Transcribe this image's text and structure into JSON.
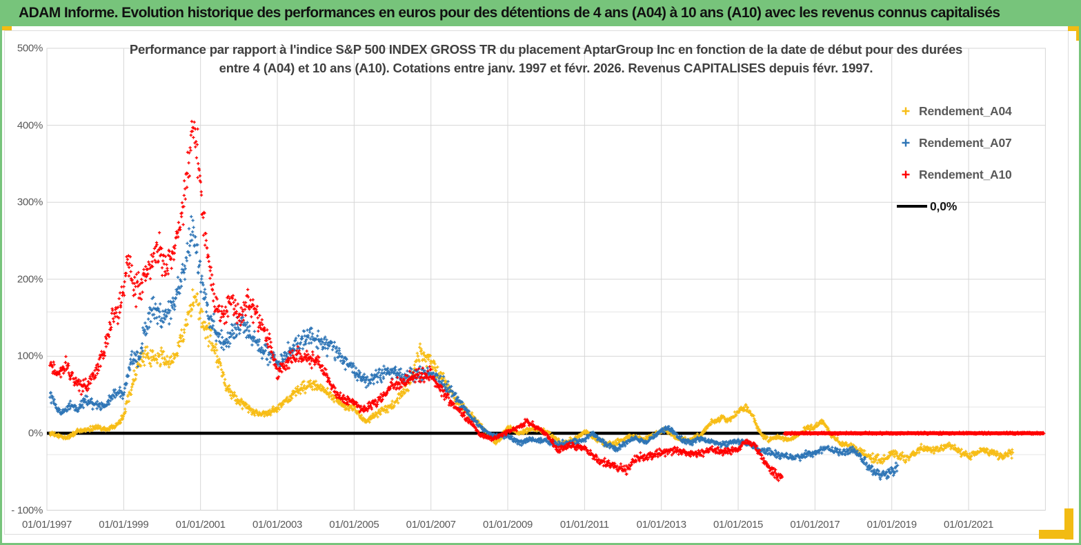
{
  "header": {
    "title": "ADAM Informe. Evolution historique des performances en euros pour des détentions de 4 ans (A04) à 10 ans (A10) avec les revenus connus capitalisés"
  },
  "chart_data": {
    "type": "scatter",
    "title_line1": "Performance par rapport à l'indice S&P 500 INDEX GROSS TR  du placement AptarGroup Inc en fonction de la date de début pour des durées",
    "title_line2": "entre 4 (A04) et 10 ans (A10). Cotations entre janv. 1997 et févr. 2026. Revenus CAPITALISES depuis févr. 1997.",
    "ylabel": "",
    "xlabel": "",
    "y_tick_labels": [
      "500%",
      "400%",
      "300%",
      "200%",
      "100%",
      "0%",
      "- 100%"
    ],
    "y_tick_values": [
      500,
      400,
      300,
      200,
      100,
      0,
      -100
    ],
    "x_tick_labels": [
      "01/01/1997",
      "01/01/1999",
      "01/01/2001",
      "01/01/2003",
      "01/01/2005",
      "01/01/2007",
      "01/01/2009",
      "01/01/2011",
      "01/01/2013",
      "01/01/2015",
      "01/01/2017",
      "01/01/2019",
      "01/01/2021"
    ],
    "x_tick_years": [
      1997,
      1999,
      2001,
      2003,
      2005,
      2007,
      2009,
      2011,
      2013,
      2015,
      2017,
      2019,
      2021
    ],
    "x_range": [
      1997.0,
      2023.0
    ],
    "y_range": [
      -100,
      500
    ],
    "grid": true,
    "extra_gridlines_pct": [
      157.6,
      34.0,
      -27.8
    ],
    "gridline_color": "#d6d6d6",
    "extra_gridline_color": "#e4e4e4",
    "axis_text_color": "#595959",
    "legend_position": "top-right",
    "legend": [
      {
        "label": "Rendement_A04",
        "color": "#f7bd16",
        "marker": "plus"
      },
      {
        "label": "Rendement_A07",
        "color": "#2e75b6",
        "marker": "plus"
      },
      {
        "label": "Rendement_A10",
        "color": "#ff0000",
        "marker": "plus"
      },
      {
        "label": "0,0%",
        "color": "#000000",
        "marker": "line"
      }
    ],
    "zero_line": {
      "value": 0.0,
      "color": "#000000",
      "label": "0,0%",
      "from": 1997.0,
      "to": 2022.96
    },
    "series": [
      {
        "name": "Rendement_A04",
        "color": "#f7bd16",
        "start": 1997.08,
        "end": 2022.15,
        "keypoints": [
          [
            1997.1,
            0
          ],
          [
            1997.3,
            -4
          ],
          [
            1997.5,
            -6
          ],
          [
            1997.8,
            2
          ],
          [
            1998.0,
            4
          ],
          [
            1998.3,
            8
          ],
          [
            1998.6,
            5
          ],
          [
            1998.9,
            15
          ],
          [
            1999.0,
            25
          ],
          [
            1999.2,
            60
          ],
          [
            1999.4,
            95
          ],
          [
            1999.6,
            100
          ],
          [
            1999.8,
            95
          ],
          [
            2000.0,
            100
          ],
          [
            2000.2,
            90
          ],
          [
            2000.4,
            110
          ],
          [
            2000.6,
            135
          ],
          [
            2000.8,
            172
          ],
          [
            2000.95,
            160
          ],
          [
            2001.1,
            140
          ],
          [
            2001.3,
            120
          ],
          [
            2001.5,
            90
          ],
          [
            2001.7,
            55
          ],
          [
            2002.0,
            42
          ],
          [
            2002.3,
            30
          ],
          [
            2002.6,
            24
          ],
          [
            2003.0,
            32
          ],
          [
            2003.3,
            45
          ],
          [
            2003.6,
            58
          ],
          [
            2003.9,
            64
          ],
          [
            2004.1,
            60
          ],
          [
            2004.4,
            48
          ],
          [
            2004.7,
            36
          ],
          [
            2005.0,
            33
          ],
          [
            2005.3,
            15
          ],
          [
            2005.6,
            25
          ],
          [
            2006.0,
            36
          ],
          [
            2006.4,
            60
          ],
          [
            2006.7,
            105
          ],
          [
            2006.9,
            98
          ],
          [
            2007.1,
            88
          ],
          [
            2007.3,
            70
          ],
          [
            2007.5,
            55
          ],
          [
            2007.8,
            35
          ],
          [
            2008.0,
            25
          ],
          [
            2008.4,
            5
          ],
          [
            2008.7,
            -14
          ],
          [
            2009.0,
            8
          ],
          [
            2009.3,
            0
          ],
          [
            2009.6,
            5
          ],
          [
            2010.0,
            3
          ],
          [
            2010.4,
            -14
          ],
          [
            2010.7,
            -9
          ],
          [
            2011.0,
            2
          ],
          [
            2011.3,
            -7
          ],
          [
            2011.6,
            -16
          ],
          [
            2011.9,
            -11
          ],
          [
            2012.2,
            -3
          ],
          [
            2012.5,
            -8
          ],
          [
            2012.8,
            -2
          ],
          [
            2013.1,
            5
          ],
          [
            2013.4,
            -6
          ],
          [
            2013.7,
            -10
          ],
          [
            2014.0,
            -3
          ],
          [
            2014.3,
            14
          ],
          [
            2014.6,
            20
          ],
          [
            2014.8,
            17
          ],
          [
            2015.0,
            27
          ],
          [
            2015.2,
            34
          ],
          [
            2015.4,
            20
          ],
          [
            2015.6,
            -2
          ],
          [
            2015.8,
            -8
          ],
          [
            2016.0,
            -5
          ],
          [
            2016.3,
            -8
          ],
          [
            2016.5,
            -5
          ],
          [
            2016.8,
            8
          ],
          [
            2017.0,
            8
          ],
          [
            2017.2,
            16
          ],
          [
            2017.4,
            -2
          ],
          [
            2017.7,
            -14
          ],
          [
            2018.0,
            -18
          ],
          [
            2018.3,
            -28
          ],
          [
            2018.7,
            -36
          ],
          [
            2019.0,
            -25
          ],
          [
            2019.4,
            -32
          ],
          [
            2019.8,
            -18
          ],
          [
            2020.1,
            -23
          ],
          [
            2020.5,
            -16
          ],
          [
            2020.8,
            -25
          ],
          [
            2021.0,
            -30
          ],
          [
            2021.3,
            -22
          ],
          [
            2021.6,
            -25
          ],
          [
            2021.9,
            -30
          ],
          [
            2022.15,
            -26
          ]
        ]
      },
      {
        "name": "Rendement_A07",
        "color": "#2e75b6",
        "start": 1997.08,
        "end": 2019.15,
        "keypoints": [
          [
            1997.1,
            50
          ],
          [
            1997.25,
            32
          ],
          [
            1997.4,
            25
          ],
          [
            1997.6,
            35
          ],
          [
            1997.8,
            30
          ],
          [
            1998.0,
            44
          ],
          [
            1998.2,
            38
          ],
          [
            1998.5,
            34
          ],
          [
            1998.8,
            55
          ],
          [
            1999.0,
            50
          ],
          [
            1999.2,
            95
          ],
          [
            1999.4,
            100
          ],
          [
            1999.6,
            140
          ],
          [
            1999.8,
            162
          ],
          [
            2000.0,
            150
          ],
          [
            2000.2,
            158
          ],
          [
            2000.4,
            185
          ],
          [
            2000.6,
            215
          ],
          [
            2000.78,
            270
          ],
          [
            2000.9,
            235
          ],
          [
            2001.05,
            195
          ],
          [
            2001.2,
            155
          ],
          [
            2001.4,
            135
          ],
          [
            2001.6,
            112
          ],
          [
            2001.8,
            130
          ],
          [
            2002.0,
            145
          ],
          [
            2002.3,
            128
          ],
          [
            2002.6,
            108
          ],
          [
            2003.0,
            90
          ],
          [
            2003.3,
            105
          ],
          [
            2003.6,
            120
          ],
          [
            2003.9,
            128
          ],
          [
            2004.2,
            115
          ],
          [
            2004.5,
            107
          ],
          [
            2004.8,
            92
          ],
          [
            2005.0,
            82
          ],
          [
            2005.3,
            68
          ],
          [
            2005.6,
            76
          ],
          [
            2006.0,
            80
          ],
          [
            2006.3,
            72
          ],
          [
            2006.6,
            78
          ],
          [
            2007.0,
            77
          ],
          [
            2007.3,
            65
          ],
          [
            2007.6,
            50
          ],
          [
            2008.0,
            24
          ],
          [
            2008.3,
            8
          ],
          [
            2008.6,
            -4
          ],
          [
            2009.0,
            -3
          ],
          [
            2009.3,
            -12
          ],
          [
            2009.6,
            -8
          ],
          [
            2010.0,
            -10
          ],
          [
            2010.3,
            -15
          ],
          [
            2010.6,
            -12
          ],
          [
            2011.0,
            -9
          ],
          [
            2011.2,
            0
          ],
          [
            2011.5,
            -12
          ],
          [
            2011.8,
            -22
          ],
          [
            2012.0,
            -15
          ],
          [
            2012.3,
            -6
          ],
          [
            2012.6,
            -12
          ],
          [
            2013.0,
            4
          ],
          [
            2013.2,
            6
          ],
          [
            2013.5,
            -7
          ],
          [
            2013.8,
            -13
          ],
          [
            2014.0,
            -7
          ],
          [
            2014.3,
            -11
          ],
          [
            2014.6,
            -15
          ],
          [
            2015.0,
            -10
          ],
          [
            2015.3,
            -14
          ],
          [
            2015.6,
            -22
          ],
          [
            2016.0,
            -28
          ],
          [
            2016.3,
            -30
          ],
          [
            2016.6,
            -30
          ],
          [
            2017.0,
            -25
          ],
          [
            2017.3,
            -20
          ],
          [
            2017.6,
            -25
          ],
          [
            2018.0,
            -22
          ],
          [
            2018.2,
            -32
          ],
          [
            2018.5,
            -48
          ],
          [
            2018.7,
            -55
          ],
          [
            2018.9,
            -52
          ],
          [
            2019.15,
            -45
          ]
        ]
      },
      {
        "name": "Rendement_A10",
        "color": "#ff0000",
        "start": 1997.08,
        "end": 2016.15,
        "keypoints": [
          [
            1997.1,
            85
          ],
          [
            1997.3,
            75
          ],
          [
            1997.5,
            88
          ],
          [
            1997.7,
            70
          ],
          [
            1997.9,
            60
          ],
          [
            1998.1,
            62
          ],
          [
            1998.3,
            85
          ],
          [
            1998.5,
            110
          ],
          [
            1998.7,
            150
          ],
          [
            1998.9,
            165
          ],
          [
            1999.1,
            220
          ],
          [
            1999.3,
            185
          ],
          [
            1999.5,
            195
          ],
          [
            1999.7,
            225
          ],
          [
            1999.9,
            240
          ],
          [
            2000.1,
            215
          ],
          [
            2000.3,
            235
          ],
          [
            2000.5,
            280
          ],
          [
            2000.65,
            330
          ],
          [
            2000.78,
            400
          ],
          [
            2000.85,
            380
          ],
          [
            2000.95,
            360
          ],
          [
            2001.05,
            295
          ],
          [
            2001.2,
            220
          ],
          [
            2001.4,
            165
          ],
          [
            2001.6,
            150
          ],
          [
            2001.8,
            172
          ],
          [
            2002.0,
            155
          ],
          [
            2002.2,
            172
          ],
          [
            2002.5,
            148
          ],
          [
            2002.8,
            118
          ],
          [
            2003.0,
            78
          ],
          [
            2003.3,
            95
          ],
          [
            2003.6,
            100
          ],
          [
            2003.9,
            98
          ],
          [
            2004.1,
            90
          ],
          [
            2004.4,
            62
          ],
          [
            2004.7,
            45
          ],
          [
            2005.0,
            40
          ],
          [
            2005.2,
            30
          ],
          [
            2005.5,
            38
          ],
          [
            2005.8,
            50
          ],
          [
            2006.0,
            62
          ],
          [
            2006.3,
            68
          ],
          [
            2006.6,
            74
          ],
          [
            2007.0,
            76
          ],
          [
            2007.2,
            62
          ],
          [
            2007.5,
            42
          ],
          [
            2008.0,
            16
          ],
          [
            2008.3,
            -3
          ],
          [
            2008.6,
            -8
          ],
          [
            2009.0,
            2
          ],
          [
            2009.3,
            8
          ],
          [
            2009.5,
            15
          ],
          [
            2009.8,
            6
          ],
          [
            2010.0,
            0
          ],
          [
            2010.3,
            -22
          ],
          [
            2010.6,
            -16
          ],
          [
            2011.0,
            -19
          ],
          [
            2011.3,
            -34
          ],
          [
            2011.6,
            -40
          ],
          [
            2011.9,
            -45
          ],
          [
            2012.1,
            -48
          ],
          [
            2012.3,
            -33
          ],
          [
            2012.6,
            -30
          ],
          [
            2013.0,
            -25
          ],
          [
            2013.4,
            -22
          ],
          [
            2013.8,
            -27
          ],
          [
            2014.0,
            -26
          ],
          [
            2014.3,
            -20
          ],
          [
            2014.6,
            -25
          ],
          [
            2015.0,
            -20
          ],
          [
            2015.2,
            -10
          ],
          [
            2015.4,
            -16
          ],
          [
            2015.6,
            -30
          ],
          [
            2015.8,
            -45
          ],
          [
            2016.0,
            -55
          ],
          [
            2016.15,
            -55
          ]
        ],
        "flat_zero_segment": {
          "from": 2016.2,
          "to": 2022.96,
          "value": 0.0
        }
      }
    ]
  }
}
